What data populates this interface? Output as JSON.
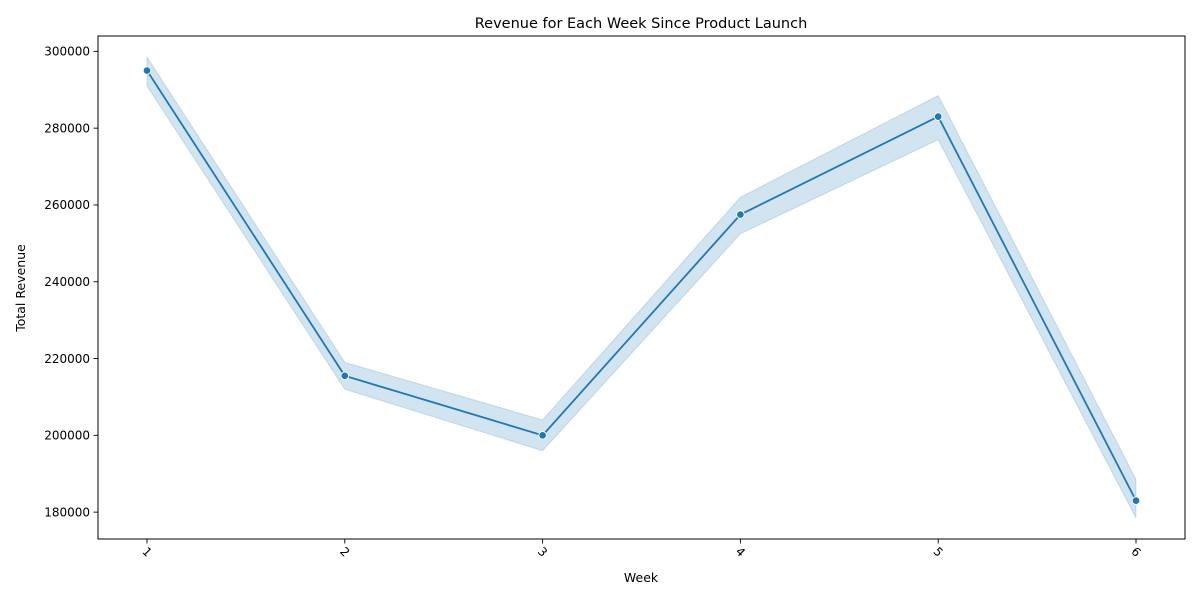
{
  "chart_data": {
    "type": "line",
    "title": "Revenue for Each Week Since Product Launch",
    "xlabel": "Week",
    "ylabel": "Total Revenue",
    "categories": [
      "1",
      "2",
      "3",
      "4",
      "5",
      "6"
    ],
    "x_tick_rotation_deg": 45,
    "ylim": [
      173000,
      304000
    ],
    "yticks": [
      180000,
      200000,
      220000,
      240000,
      260000,
      280000,
      300000
    ],
    "ytick_labels": [
      "180000",
      "200000",
      "220000",
      "240000",
      "260000",
      "280000",
      "300000"
    ],
    "grid": false,
    "legend": "none",
    "series": [
      {
        "values": [
          295000,
          215500,
          200000,
          257500,
          283000,
          183000
        ],
        "ci_lower": [
          291000,
          212000,
          196000,
          252500,
          277000,
          178500
        ],
        "ci_upper": [
          298500,
          219000,
          204000,
          262000,
          288500,
          188500
        ],
        "color": "#1f77b4",
        "band_color": "#1f77b4",
        "band_opacity": 0.2,
        "marker": "circle"
      }
    ]
  }
}
